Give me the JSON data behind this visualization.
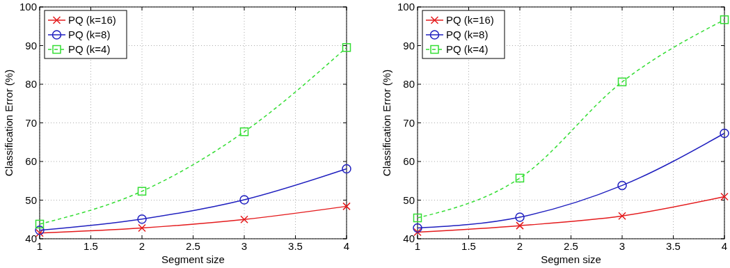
{
  "chart_data": [
    {
      "type": "line",
      "xlabel": "Segment size",
      "ylabel": "Classification Error (%)",
      "x": [
        1,
        2,
        3,
        4
      ],
      "xlim": [
        1,
        4
      ],
      "xticks": [
        1,
        1.5,
        2,
        2.5,
        3,
        3.5,
        4
      ],
      "ylim": [
        40,
        100
      ],
      "yticks": [
        40,
        50,
        60,
        70,
        80,
        90,
        100
      ],
      "grid": true,
      "legend": "top left",
      "series": [
        {
          "name": "PQ (k=16)",
          "color": "#e41a1c",
          "values": [
            41.5,
            42.8,
            45,
            48.4
          ],
          "marker": "cross",
          "line_style": "solid"
        },
        {
          "name": "PQ (k=8)",
          "color": "#1f1fbf",
          "values": [
            42.2,
            45.1,
            50.1,
            58.1
          ],
          "marker": "circle",
          "line_style": "solid"
        },
        {
          "name": "PQ (k=4)",
          "color": "#33dd33",
          "values": [
            43.8,
            52.3,
            67.7,
            89.5
          ],
          "marker": "square",
          "line_style": "dashed"
        }
      ]
    },
    {
      "type": "line",
      "xlabel": "Segmen size",
      "ylabel": "Classification Error (%)",
      "x": [
        1,
        2,
        3,
        4
      ],
      "xlim": [
        1,
        4
      ],
      "xticks": [
        1,
        1.5,
        2,
        2.5,
        3,
        3.5,
        4
      ],
      "ylim": [
        40,
        100
      ],
      "yticks": [
        40,
        50,
        60,
        70,
        80,
        90,
        100
      ],
      "grid": true,
      "legend": "top left",
      "series": [
        {
          "name": "PQ (k=16)",
          "color": "#e41a1c",
          "values": [
            41.7,
            43.4,
            45.9,
            50.9
          ],
          "marker": "cross",
          "line_style": "solid"
        },
        {
          "name": "PQ (k=8)",
          "color": "#1f1fbf",
          "values": [
            42.8,
            45.6,
            53.8,
            67.3
          ],
          "marker": "circle",
          "line_style": "solid"
        },
        {
          "name": "PQ (k=4)",
          "color": "#33dd33",
          "values": [
            45.4,
            55.7,
            80.6,
            96.7
          ],
          "marker": "square",
          "line_style": "dashed"
        }
      ]
    }
  ]
}
